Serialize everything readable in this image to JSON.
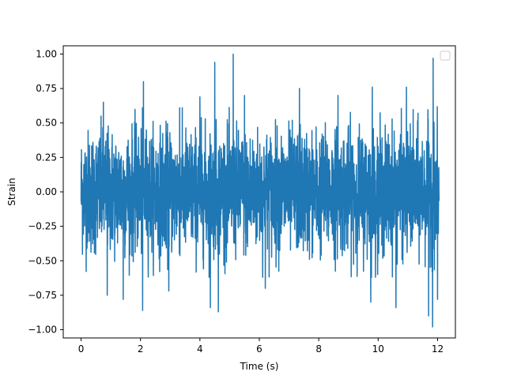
{
  "chart_data": {
    "type": "line",
    "title": "",
    "xlabel": "Time (s)",
    "ylabel": "Strain",
    "xlim": [
      -0.6,
      12.6
    ],
    "ylim": [
      -1.06,
      1.06
    ],
    "x_ticks": [
      0,
      2,
      4,
      6,
      8,
      10,
      12
    ],
    "x_tick_labels": [
      "0",
      "2",
      "4",
      "6",
      "8",
      "10",
      "12"
    ],
    "y_ticks": [
      -1.0,
      -0.75,
      -0.5,
      -0.25,
      0.0,
      0.25,
      0.5,
      0.75,
      1.0
    ],
    "y_tick_labels": [
      "−1.00",
      "−0.75",
      "−0.50",
      "−0.25",
      "0.00",
      "0.25",
      "0.50",
      "0.75",
      "1.00"
    ],
    "grid": false,
    "legend": {
      "placement": "top-right",
      "entries": []
    },
    "series": [
      {
        "color": "#1f77b4",
        "x_start": 0,
        "x_end": 12.05,
        "noise_sd": 0.22,
        "max_value": 1.0,
        "min_value": -0.98,
        "peaks": [
          {
            "x": 5.12,
            "y": 1.0
          },
          {
            "x": 4.5,
            "y": 0.94
          },
          {
            "x": 11.85,
            "y": 0.97
          },
          {
            "x": 2.1,
            "y": 0.8
          },
          {
            "x": 7.35,
            "y": 0.75
          },
          {
            "x": 8.65,
            "y": 0.7
          },
          {
            "x": 9.8,
            "y": 0.76
          },
          {
            "x": 10.95,
            "y": 0.76
          },
          {
            "x": 4.0,
            "y": 0.69
          },
          {
            "x": 5.5,
            "y": 0.7
          },
          {
            "x": 3.32,
            "y": 0.61
          },
          {
            "x": 0.75,
            "y": 0.65
          }
        ],
        "troughs": [
          {
            "x": 11.83,
            "y": -0.98
          },
          {
            "x": 4.62,
            "y": -0.87
          },
          {
            "x": 2.07,
            "y": -0.86
          },
          {
            "x": 11.7,
            "y": -0.9
          },
          {
            "x": 4.35,
            "y": -0.84
          },
          {
            "x": 1.42,
            "y": -0.78
          },
          {
            "x": 0.88,
            "y": -0.75
          },
          {
            "x": 10.6,
            "y": -0.84
          },
          {
            "x": 9.75,
            "y": -0.8
          },
          {
            "x": 6.2,
            "y": -0.7
          },
          {
            "x": 2.95,
            "y": -0.72
          },
          {
            "x": 12.0,
            "y": -0.78
          }
        ]
      }
    ]
  }
}
